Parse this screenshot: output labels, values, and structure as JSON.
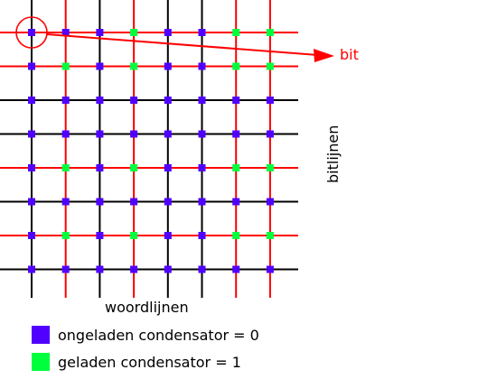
{
  "labels": {
    "bit": "bit",
    "word_lines": "woordlijnen",
    "bit_lines": "bitlijnen"
  },
  "legend": [
    {
      "swatch": "purple",
      "text": "ongeladen condensator = 0"
    },
    {
      "swatch": "green",
      "text": "geladen condensator = 1"
    }
  ],
  "colors": {
    "purple": "#4f00ff",
    "green": "#00ff3c",
    "red_line": "#ff0000",
    "black_line": "#000000",
    "label_red": "#ff0000"
  },
  "grid": {
    "rows": 8,
    "cols": 8,
    "row_line_colors": [
      "red",
      "red",
      "black",
      "black",
      "red",
      "black",
      "red",
      "black"
    ],
    "col_line_colors": [
      "black",
      "red",
      "black",
      "red",
      "black",
      "black",
      "red",
      "red"
    ],
    "cells": [
      [
        0,
        0,
        0,
        1,
        0,
        0,
        1,
        1
      ],
      [
        0,
        1,
        0,
        1,
        0,
        0,
        1,
        1
      ],
      [
        0,
        0,
        0,
        0,
        0,
        0,
        0,
        0
      ],
      [
        0,
        0,
        0,
        0,
        0,
        0,
        0,
        0
      ],
      [
        0,
        1,
        0,
        1,
        0,
        0,
        1,
        1
      ],
      [
        0,
        0,
        0,
        0,
        0,
        0,
        0,
        0
      ],
      [
        0,
        1,
        0,
        1,
        0,
        0,
        1,
        1
      ],
      [
        0,
        0,
        0,
        0,
        0,
        0,
        0,
        0
      ]
    ],
    "highlighted_cell": {
      "row": 0,
      "col": 0
    }
  }
}
